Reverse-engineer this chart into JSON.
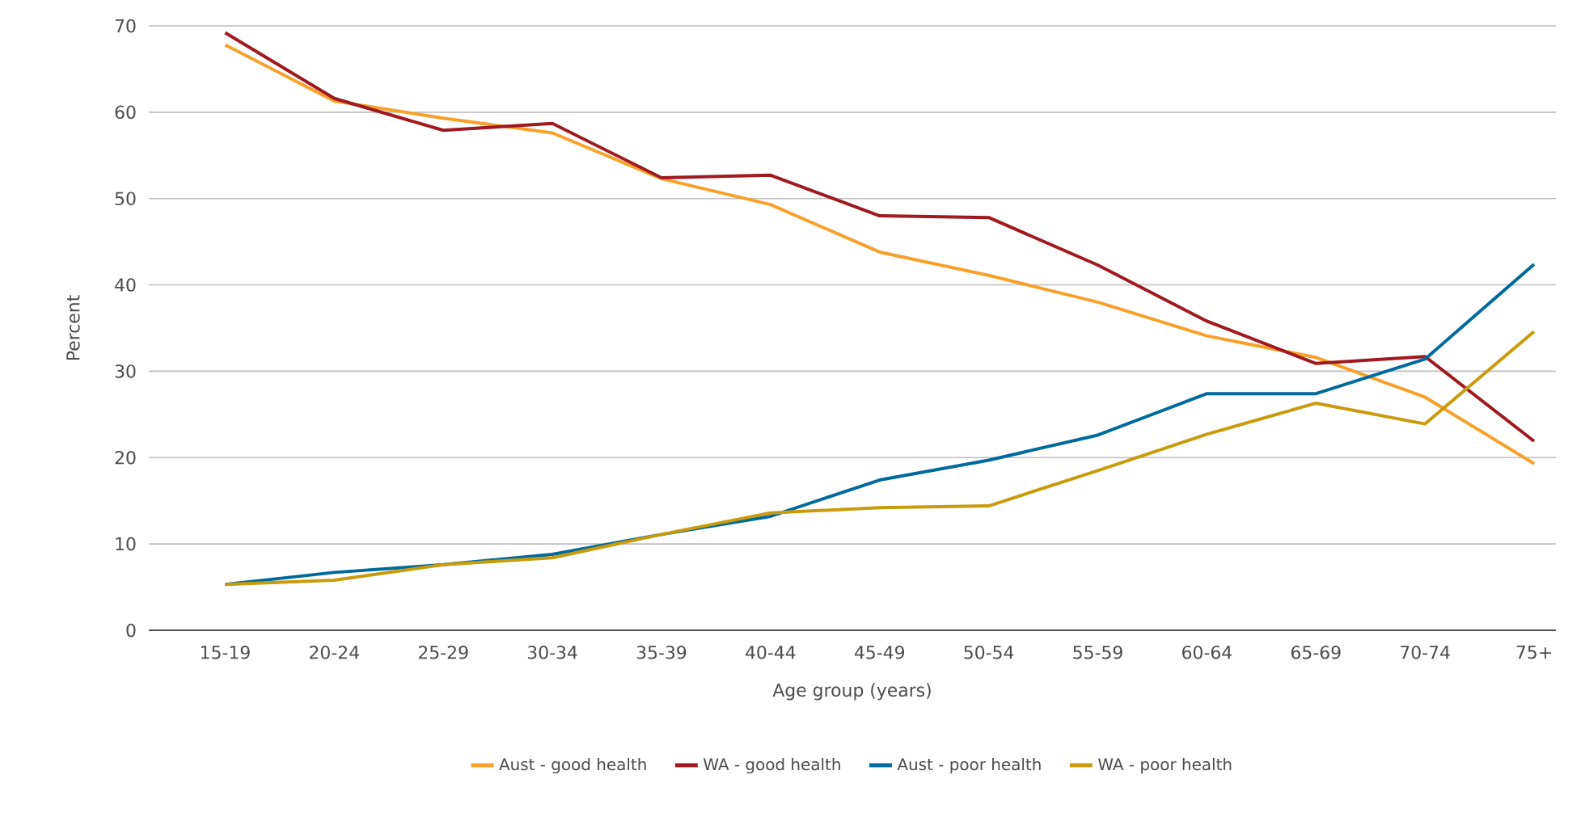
{
  "chart_data": {
    "type": "line",
    "xlabel": "Age group (years)",
    "ylabel": "Percent",
    "categories": [
      "15-19",
      "20-24",
      "25-29",
      "30-34",
      "35-39",
      "40-44",
      "45-49",
      "50-54",
      "55-59",
      "60-64",
      "65-69",
      "70-74",
      "75+"
    ],
    "series": [
      {
        "name": "Aust - good health",
        "color": "#f7a12a",
        "values": [
          67.8,
          61.3,
          59.3,
          57.6,
          52.3,
          49.3,
          43.8,
          41.1,
          38.0,
          34.1,
          31.6,
          27.0,
          19.3
        ]
      },
      {
        "name": "WA - good health",
        "color": "#a0191e",
        "values": [
          69.2,
          61.6,
          57.9,
          58.7,
          52.4,
          52.7,
          48.0,
          47.8,
          42.3,
          35.8,
          30.9,
          31.7,
          21.9
        ]
      },
      {
        "name": "Aust - poor health",
        "color": "#006a9c",
        "values": [
          5.3,
          6.7,
          7.6,
          8.8,
          11.1,
          13.2,
          17.4,
          19.7,
          22.6,
          27.4,
          27.4,
          31.4,
          42.4
        ]
      },
      {
        "name": "WA - poor health",
        "color": "#c99b0c",
        "values": [
          5.3,
          5.8,
          7.6,
          8.4,
          11.1,
          13.6,
          14.2,
          14.4,
          18.5,
          22.7,
          26.3,
          23.9,
          34.6
        ]
      }
    ],
    "ylim": [
      0,
      70
    ],
    "yticks": [
      0,
      10,
      20,
      30,
      40,
      50,
      60,
      70
    ],
    "grid": "y",
    "legend": "bottom",
    "marker": "none",
    "line_style": "solid"
  }
}
